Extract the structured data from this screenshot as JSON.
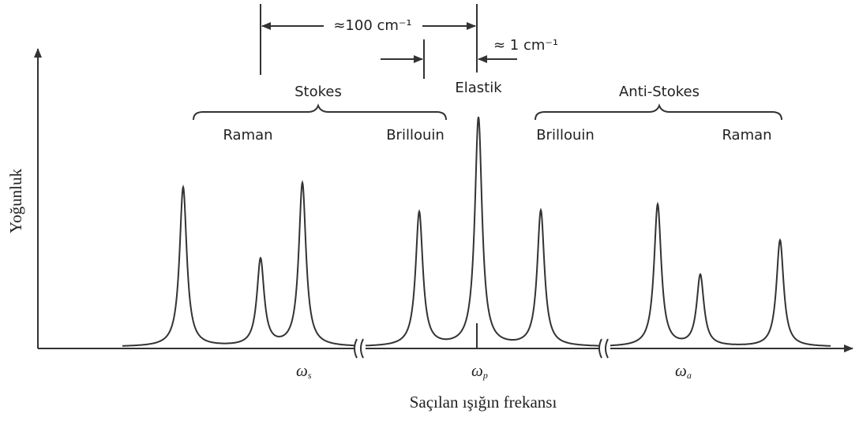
{
  "diagram": {
    "y_axis_label": "Yoğunluk",
    "x_axis_label": "Saçılan ışığın frekansı",
    "spacing_large": "≈100 cm⁻¹",
    "spacing_small": "≈  1 cm⁻¹",
    "elastic_label": "Elastik",
    "groups": [
      {
        "label": "Stokes",
        "left": "Raman",
        "right": "Brillouin"
      },
      {
        "label": "Anti-Stokes",
        "left": "Brillouin",
        "right": "Raman"
      }
    ],
    "frequencies": [
      {
        "symbol": "ω",
        "subscript": "s"
      },
      {
        "symbol": "ω",
        "subscript": "p"
      },
      {
        "symbol": "ω",
        "subscript": "a"
      }
    ]
  }
}
